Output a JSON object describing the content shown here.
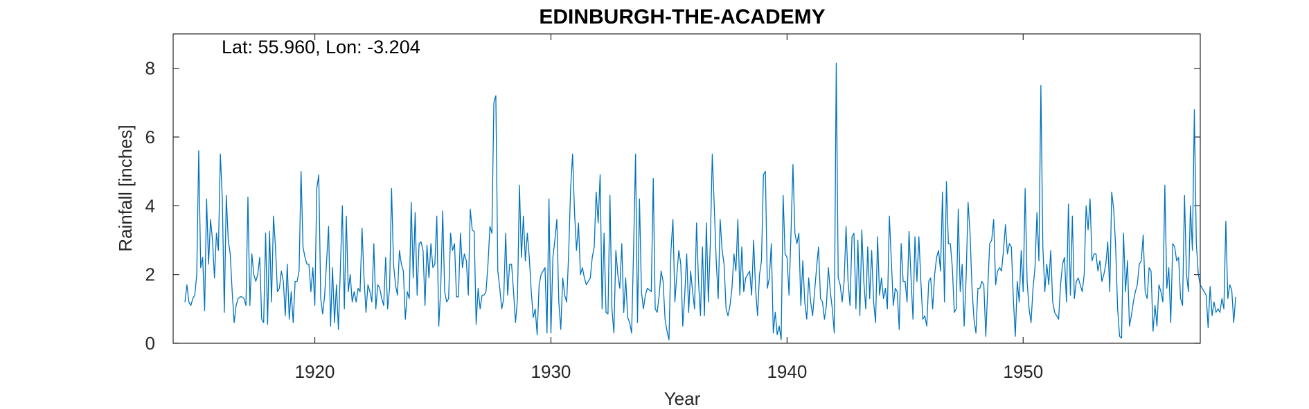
{
  "chart_data": {
    "type": "line",
    "title": "EDINBURGH-THE-ACADEMY",
    "xlabel": "Year",
    "ylabel": "Rainfall [inches]",
    "annotation": "Lat: 55.960, Lon: -3.204",
    "xlim": [
      1914.0,
      1957.5
    ],
    "ylim": [
      0,
      9
    ],
    "xticks": [
      1920,
      1930,
      1940,
      1950
    ],
    "yticks": [
      0,
      2,
      4,
      6,
      8
    ],
    "grid": false,
    "line_color": "#0072BD",
    "x_start": 1914.5,
    "x_step": 0.0833333,
    "values": [
      1.2,
      1.7,
      1.2,
      1.1,
      1.3,
      1.4,
      2.0,
      5.6,
      2.2,
      2.5,
      0.95,
      4.2,
      2.3,
      3.6,
      3.0,
      1.9,
      3.2,
      2.7,
      5.5,
      4.2,
      0.9,
      4.3,
      3.0,
      2.6,
      1.5,
      0.6,
      1.1,
      1.3,
      1.35,
      1.35,
      1.3,
      1.1,
      4.25,
      1.1,
      2.6,
      2.0,
      1.8,
      2.0,
      2.5,
      0.7,
      0.6,
      3.2,
      0.55,
      3.25,
      1.2,
      3.7,
      2.8,
      1.5,
      1.6,
      2.1,
      1.8,
      0.8,
      2.3,
      0.7,
      1.5,
      0.6,
      1.8,
      1.8,
      2.1,
      5.0,
      2.8,
      2.5,
      2.3,
      2.3,
      1.5,
      2.2,
      1.1,
      4.5,
      4.9,
      1.3,
      0.85,
      1.4,
      2.4,
      3.4,
      0.5,
      2.2,
      0.6,
      1.7,
      0.4,
      2.2,
      4.0,
      1.0,
      3.7,
      1.5,
      2.0,
      1.2,
      1.5,
      1.2,
      1.6,
      1.5,
      3.35,
      1.9,
      0.9,
      1.7,
      1.5,
      1.2,
      2.9,
      1.0,
      1.7,
      1.6,
      1.3,
      1.1,
      2.5,
      1.0,
      1.6,
      4.5,
      2.3,
      1.7,
      1.4,
      2.7,
      2.3,
      2.1,
      0.7,
      1.5,
      1.3,
      4.1,
      1.9,
      3.8,
      1.4,
      2.9,
      2.95,
      2.7,
      1.1,
      2.85,
      1.9,
      2.9,
      2.2,
      2.3,
      3.7,
      0.5,
      1.6,
      3.85,
      1.5,
      1.2,
      1.3,
      3.2,
      2.7,
      2.9,
      1.35,
      1.35,
      3.2,
      2.2,
      2.6,
      2.4,
      1.4,
      3.9,
      3.3,
      3.25,
      0.55,
      1.6,
      1.0,
      1.4,
      1.4,
      1.5,
      2.3,
      3.4,
      3.2,
      7.0,
      7.2,
      2.1,
      1.6,
      1.0,
      1.3,
      3.2,
      1.4,
      2.3,
      2.3,
      1.5,
      0.6,
      1.3,
      4.6,
      2.5,
      3.7,
      2.4,
      3.2,
      2.5,
      1.5,
      0.75,
      1.0,
      0.25,
      1.7,
      2.0,
      2.1,
      2.2,
      0.3,
      4.2,
      0.3,
      2.5,
      3.0,
      3.6,
      1.2,
      0.4,
      1.9,
      1.4,
      1.2,
      2.6,
      4.5,
      5.5,
      3.8,
      2.7,
      3.5,
      2.0,
      2.2,
      1.9,
      1.7,
      1.8,
      1.9,
      2.5,
      2.8,
      4.4,
      3.5,
      4.9,
      1.0,
      3.2,
      0.9,
      0.85,
      4.3,
      1.0,
      0.3,
      2.7,
      2.0,
      1.6,
      2.9,
      0.9,
      1.9,
      0.75,
      0.6,
      0.3,
      2.7,
      5.5,
      0.6,
      4.2,
      1.5,
      1.0,
      1.4,
      1.6,
      1.55,
      1.5,
      4.8,
      1.0,
      0.9,
      1.4,
      2.1,
      1.8,
      0.7,
      0.35,
      0.1,
      2.7,
      3.6,
      1.2,
      2.0,
      2.7,
      2.3,
      0.5,
      1.4,
      2.6,
      0.9,
      2.1,
      1.5,
      1.0,
      3.5,
      1.8,
      0.8,
      2.8,
      0.8,
      3.5,
      1.2,
      2.9,
      5.5,
      4.0,
      2.4,
      1.3,
      3.6,
      2.7,
      2.3,
      1.0,
      0.8,
      1.1,
      1.6,
      2.6,
      2.1,
      3.6,
      1.4,
      2.8,
      1.5,
      1.9,
      2.0,
      2.1,
      1.4,
      3.0,
      1.6,
      0.8,
      2.0,
      2.4,
      4.9,
      5.0,
      1.6,
      1.9,
      2.9,
      0.3,
      0.9,
      0.25,
      0.5,
      0.1,
      4.3,
      2.6,
      2.5,
      1.4,
      3.2,
      5.2,
      3.2,
      2.9,
      3.2,
      1.1,
      2.4,
      1.2,
      0.7,
      1.9,
      1.2,
      0.8,
      1.5,
      2.2,
      2.8,
      1.3,
      1.2,
      0.7,
      1.1,
      2.2,
      1.5,
      1.0,
      0.3,
      8.15,
      1.9,
      1.7,
      1.2,
      1.8,
      3.4,
      1.8,
      1.1,
      3.1,
      3.2,
      1.0,
      3.0,
      0.8,
      3.3,
      1.8,
      1.0,
      2.8,
      1.3,
      2.7,
      1.2,
      0.6,
      3.1,
      1.4,
      1.9,
      1.3,
      1.6,
      1.0,
      3.7,
      2.4,
      1.1,
      1.6,
      1.5,
      0.4,
      2.9,
      1.8,
      1.8,
      1.2,
      3.25,
      1.9,
      0.7,
      3.1,
      1.8,
      3.1,
      1.8,
      0.7,
      0.8,
      0.5,
      1.8,
      1.9,
      1.0,
      2.0,
      2.5,
      2.7,
      2.1,
      4.4,
      1.2,
      4.7,
      2.9,
      2.9,
      2.2,
      0.9,
      1.0,
      3.9,
      1.5,
      2.3,
      0.5,
      1.9,
      4.1,
      3.2,
      1.6,
      0.7,
      0.3,
      1.6,
      1.6,
      1.8,
      1.7,
      0.2,
      1.6,
      2.9,
      3.0,
      3.6,
      1.7,
      2.1,
      2.2,
      2.1,
      2.7,
      3.45,
      2.6,
      2.9,
      2.8,
      1.3,
      0.2,
      1.8,
      1.2,
      2.7,
      1.5,
      4.5,
      1.8,
      1.0,
      0.6,
      1.6,
      2.2,
      3.8,
      2.4,
      7.5,
      2.8,
      1.5,
      2.3,
      1.7,
      2.7,
      1.2,
      0.9,
      0.8,
      0.7,
      1.7,
      2.3,
      2.5,
      1.2,
      4.05,
      1.4,
      3.7,
      1.3,
      1.8,
      1.9,
      1.7,
      1.5,
      2.0,
      4.0,
      3.3,
      4.2,
      2.4,
      2.6,
      2.6,
      2.1,
      2.4,
      1.8,
      2.0,
      2.3,
      2.95,
      1.5,
      4.4,
      3.9,
      2.8,
      1.0,
      0.2,
      0.15,
      3.2,
      1.5,
      2.4,
      0.5,
      0.8,
      1.2,
      1.5,
      1.7,
      2.3,
      2.4,
      3.15,
      1.5,
      1.3,
      2.2,
      2.1,
      0.35,
      1.1,
      0.5,
      1.7,
      1.5,
      1.2,
      4.6,
      1.6,
      2.2,
      0.6,
      2.9,
      2.8,
      2.4,
      2.5,
      1.3,
      1.1,
      4.3,
      2.0,
      1.5,
      4.0,
      2.7,
      6.8,
      2.9,
      2.0,
      1.7,
      1.6,
      1.5,
      1.4,
      0.45,
      1.65,
      0.8,
      1.2,
      0.9,
      1.0,
      0.9,
      1.3,
      1.0,
      3.55,
      1.3,
      1.7,
      1.55,
      0.6,
      1.35
    ]
  }
}
